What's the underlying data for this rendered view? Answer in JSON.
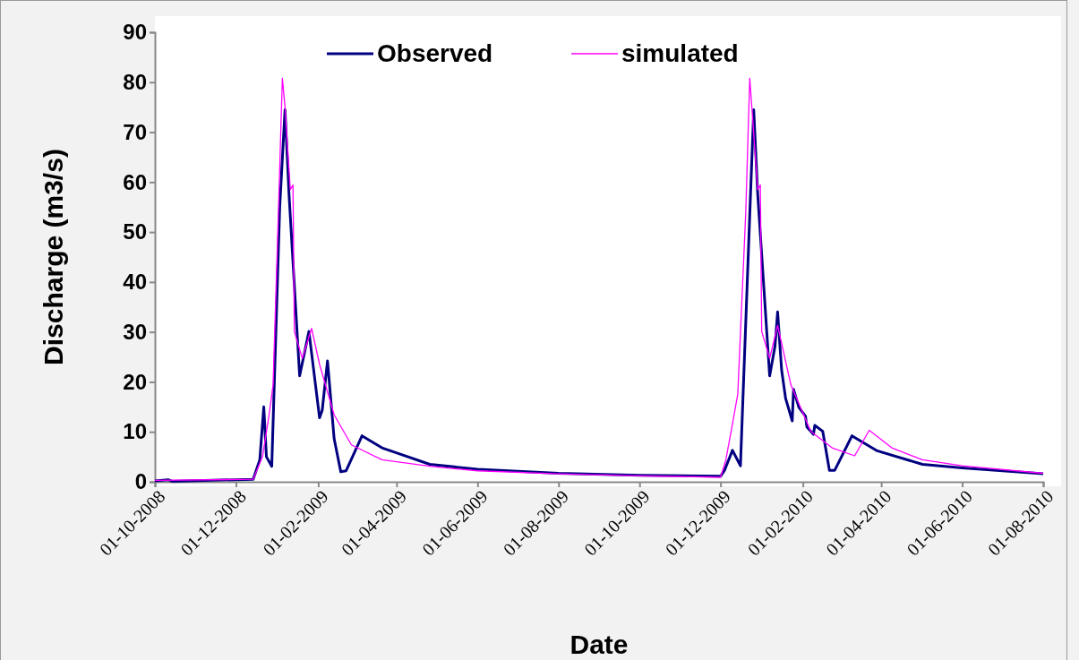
{
  "chart_data": {
    "type": "line",
    "xlabel": "Date",
    "ylabel": "Discharge (m3/s)",
    "legend": "top",
    "grid": false,
    "marker": "none",
    "line_style": "solid",
    "xlim": [
      "2008-10-01",
      "2010-08-01"
    ],
    "xticks": [
      {
        "value": "2008-10-01",
        "label": "01-10-2008"
      },
      {
        "value": "2008-12-01",
        "label": "01-12-2008"
      },
      {
        "value": "2009-02-01",
        "label": "01-02-2009"
      },
      {
        "value": "2009-04-01",
        "label": "01-04-2009"
      },
      {
        "value": "2009-06-01",
        "label": "01-06-2009"
      },
      {
        "value": "2009-08-01",
        "label": "01-08-2009"
      },
      {
        "value": "2009-10-01",
        "label": "01-10-2009"
      },
      {
        "value": "2009-12-01",
        "label": "01-12-2009"
      },
      {
        "value": "2010-02-01",
        "label": "01-02-2010"
      },
      {
        "value": "2010-04-01",
        "label": "01-04-2010"
      },
      {
        "value": "2010-06-01",
        "label": "01-06-2010"
      },
      {
        "value": "2010-08-01",
        "label": "01-08-2010"
      }
    ],
    "ylim": [
      0,
      90
    ],
    "yticks": [
      0,
      10,
      20,
      30,
      40,
      50,
      60,
      70,
      80,
      90
    ],
    "series": [
      {
        "name": "Observed",
        "color": "#000080",
        "x": [
          "2008-10-01",
          "2008-10-11",
          "2008-10-14",
          "2008-12-14",
          "2008-12-19",
          "2008-12-22",
          "2008-12-24",
          "2008-12-28",
          "2009-01-03",
          "2009-01-07",
          "2009-01-10",
          "2009-01-18",
          "2009-01-25",
          "2009-02-02",
          "2009-02-04",
          "2009-02-08",
          "2009-02-13",
          "2009-02-18",
          "2009-02-22",
          "2009-03-06",
          "2009-03-21",
          "2009-04-26",
          "2009-06-01",
          "2009-08-01",
          "2009-10-01",
          "2009-12-01",
          "2009-12-04",
          "2009-12-10",
          "2009-12-16",
          "2009-12-23",
          "2009-12-26",
          "2009-12-29",
          "2010-01-07",
          "2010-01-11",
          "2010-01-13",
          "2010-01-16",
          "2010-01-19",
          "2010-01-24",
          "2010-01-25",
          "2010-01-29",
          "2010-02-03",
          "2010-02-04",
          "2010-02-09",
          "2010-02-10",
          "2010-02-16",
          "2010-02-21",
          "2010-02-25",
          "2010-03-10",
          "2010-03-29",
          "2010-05-02",
          "2010-06-01",
          "2010-08-01"
        ],
        "values": [
          0.2,
          0.4,
          0.1,
          0.5,
          4.4,
          15,
          5,
          3.1,
          55,
          74.5,
          57.6,
          21.2,
          30.1,
          12.8,
          14.3,
          24.2,
          8.6,
          2,
          2.2,
          9.2,
          6.8,
          3.5,
          2.5,
          1.7,
          1.3,
          1.1,
          2.3,
          6.3,
          3.2,
          53.4,
          74.5,
          57.6,
          21.2,
          27.1,
          34,
          22.4,
          16.7,
          12.2,
          18.5,
          14.9,
          13.1,
          11,
          9.5,
          11.3,
          10.1,
          2.3,
          2.3,
          9.2,
          6.2,
          3.5,
          2.8,
          1.6
        ]
      },
      {
        "name": "simulated",
        "color": "#ff00ff",
        "x": [
          "2008-10-01",
          "2008-12-14",
          "2008-12-21",
          "2008-12-26",
          "2008-12-29",
          "2009-01-02",
          "2009-01-05",
          "2009-01-07",
          "2009-01-11",
          "2009-01-13",
          "2009-01-14",
          "2009-01-20",
          "2009-01-27",
          "2009-02-02",
          "2009-02-13",
          "2009-02-26",
          "2009-03-21",
          "2009-04-26",
          "2009-06-01",
          "2009-08-01",
          "2009-10-01",
          "2009-12-01",
          "2009-12-05",
          "2009-12-10",
          "2009-12-14",
          "2009-12-20",
          "2009-12-23",
          "2009-12-29",
          "2009-12-31",
          "2010-01-01",
          "2010-01-07",
          "2010-01-13",
          "2010-01-23",
          "2010-02-07",
          "2010-02-23",
          "2010-03-12",
          "2010-03-23",
          "2010-04-09",
          "2010-05-02",
          "2010-06-01",
          "2010-08-01"
        ],
        "values": [
          0.3,
          0.5,
          5,
          13.4,
          19.4,
          54,
          80.8,
          75,
          58.5,
          59.4,
          30.1,
          24.7,
          30.7,
          23.5,
          13.4,
          7.4,
          4.4,
          3.1,
          2.2,
          1.6,
          1.2,
          0.9,
          4.4,
          11.6,
          17.6,
          54,
          80.8,
          58.5,
          59.4,
          30.1,
          24.7,
          31.3,
          19.4,
          10.1,
          6.8,
          5.2,
          10.3,
          6.8,
          4.4,
          3.2,
          1.7
        ]
      }
    ]
  }
}
